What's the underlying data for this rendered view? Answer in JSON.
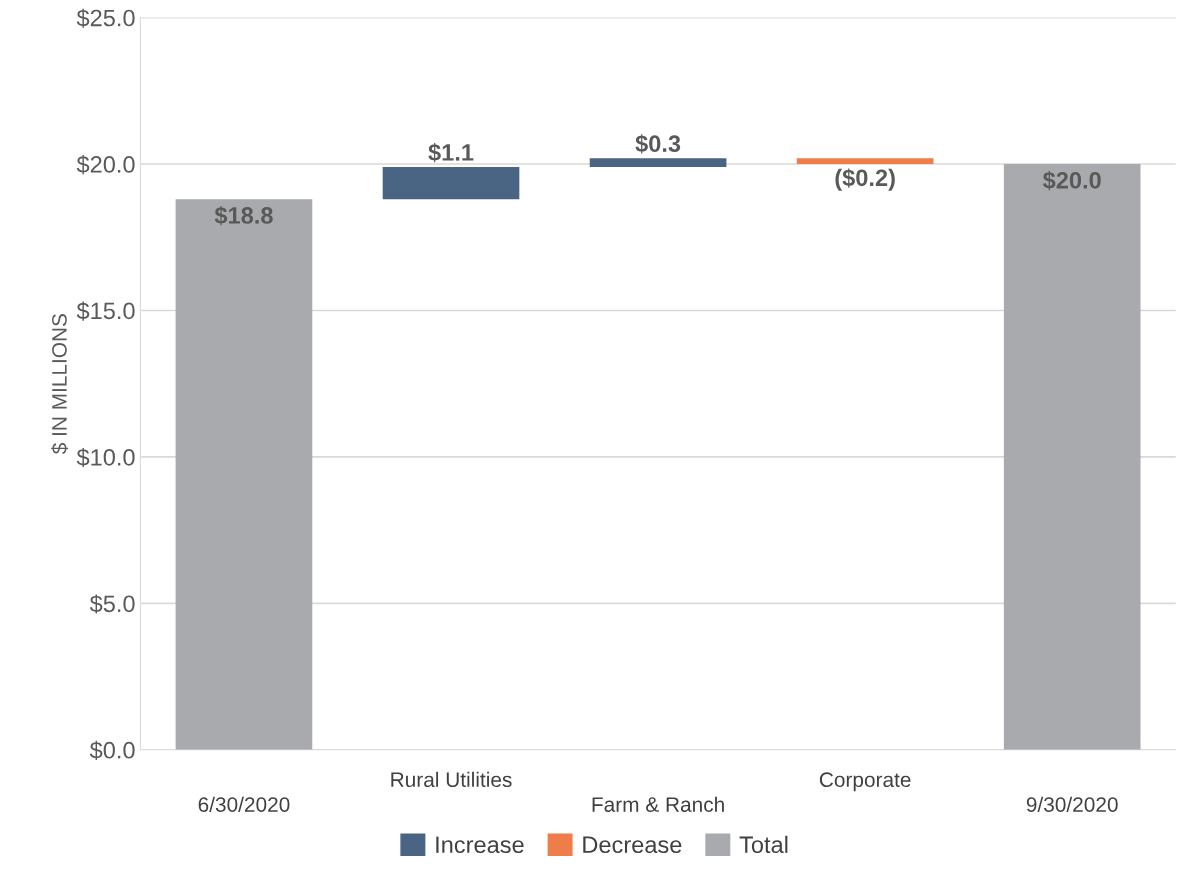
{
  "chart_data": {
    "type": "bar",
    "ylabel": "$ IN MILLIONS",
    "categories": [
      "6/30/2020",
      "Rural Utilities",
      "Farm & Ranch",
      "Corporate",
      "9/30/2020"
    ],
    "series": [
      {
        "name": "Increase",
        "color": "#4a6484",
        "base": [
          null,
          18.8,
          19.9,
          null,
          null
        ],
        "values": [
          null,
          1.1,
          0.3,
          null,
          null
        ],
        "value_labels": [
          null,
          "$1.1",
          "$0.3",
          null,
          null
        ]
      },
      {
        "name": "Decrease",
        "color": "#ef7d4a",
        "base": [
          null,
          null,
          null,
          20.2,
          null
        ],
        "values": [
          null,
          null,
          null,
          -0.2,
          null
        ],
        "value_labels": [
          null,
          null,
          null,
          "($0.2)",
          null
        ]
      },
      {
        "name": "Total",
        "color": "#a9aaad",
        "base": [
          0,
          null,
          null,
          null,
          0
        ],
        "values": [
          18.8,
          null,
          null,
          null,
          20.0
        ],
        "value_labels": [
          "$18.8",
          null,
          null,
          null,
          "$20.0"
        ]
      }
    ],
    "ylim": [
      0,
      25
    ],
    "yticks": [
      {
        "value": 0,
        "label": "$0.0"
      },
      {
        "value": 5,
        "label": "$5.0"
      },
      {
        "value": 10,
        "label": "$10.0"
      },
      {
        "value": 15,
        "label": "$15.0"
      },
      {
        "value": 20,
        "label": "$20.0"
      },
      {
        "value": 25,
        "label": "$25.0"
      }
    ],
    "grid": "y",
    "legend": "bottom"
  }
}
